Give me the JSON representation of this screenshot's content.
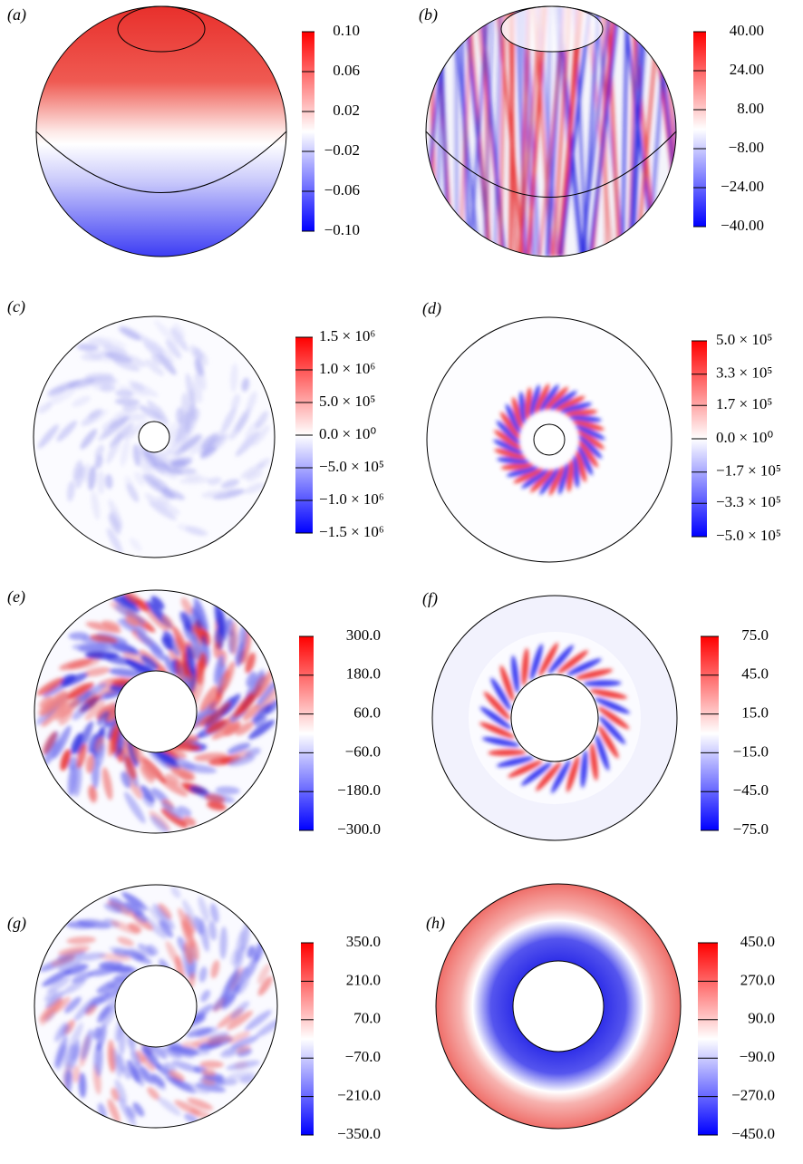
{
  "panels": [
    {
      "label": "(a)",
      "colorbar": {
        "lim": [
          -0.1,
          0.1
        ],
        "ticks": [
          {
            "value": 0.1,
            "label": "0.10"
          },
          0.06,
          0.02,
          {
            "value": -0.02,
            "label": "−0.02"
          },
          {
            "value": -0.06,
            "label": "−0.06"
          },
          {
            "value": -0.1,
            "label": "−0.10"
          }
        ]
      }
    },
    {
      "label": "(b)",
      "colorbar": {
        "lim": [
          -40,
          40
        ],
        "ticks": [
          {
            "value": 40,
            "label": "40.00"
          },
          {
            "value": 24,
            "label": "24.00"
          },
          {
            "value": 8,
            "label": "8.00"
          },
          {
            "value": -8,
            "label": "−8.00"
          },
          {
            "value": -24,
            "label": "−24.00"
          },
          {
            "value": -40,
            "label": "−40.00"
          }
        ]
      }
    },
    {
      "label": "(c)",
      "colorbar": {
        "lim": [
          -1500000,
          1500000
        ],
        "ticks": [
          {
            "value": 1500000,
            "label": "1.5 × 10⁶"
          },
          {
            "value": 1000000,
            "label": "1.0 × 10⁶"
          },
          {
            "value": 500000,
            "label": "5.0 × 10⁵"
          },
          {
            "value": 0,
            "label": "0.0 × 10⁰"
          },
          {
            "value": -500000,
            "label": "−5.0 × 10⁵"
          },
          {
            "value": -1000000,
            "label": "−1.0 × 10⁶"
          },
          {
            "value": -1500000,
            "label": "−1.5 × 10⁶"
          }
        ]
      }
    },
    {
      "label": "(d)",
      "colorbar": {
        "lim": [
          -500000,
          500000
        ],
        "ticks": [
          {
            "value": 500000,
            "label": "5.0 × 10⁵"
          },
          {
            "value": 330000,
            "label": "3.3 × 10⁵"
          },
          {
            "value": 170000,
            "label": "1.7 × 10⁵"
          },
          {
            "value": 0,
            "label": "0.0 × 10⁰"
          },
          {
            "value": -170000,
            "label": "−1.7 × 10⁵"
          },
          {
            "value": -330000,
            "label": "−3.3 × 10⁵"
          },
          {
            "value": -500000,
            "label": "−5.0 × 10⁵"
          }
        ]
      }
    },
    {
      "label": "(e)",
      "colorbar": {
        "lim": [
          -300,
          300
        ],
        "ticks": [
          {
            "value": 300,
            "label": "300.0"
          },
          {
            "value": 180,
            "label": "180.0"
          },
          {
            "value": 60,
            "label": "60.0"
          },
          {
            "value": -60,
            "label": "−60.0"
          },
          {
            "value": -180,
            "label": "−180.0"
          },
          {
            "value": -300,
            "label": "−300.0"
          }
        ]
      }
    },
    {
      "label": "(f)",
      "colorbar": {
        "lim": [
          -75,
          75
        ],
        "ticks": [
          {
            "value": 75,
            "label": "75.0"
          },
          {
            "value": 45,
            "label": "45.0"
          },
          {
            "value": 15,
            "label": "15.0"
          },
          {
            "value": -15,
            "label": "−15.0"
          },
          {
            "value": -45,
            "label": "−45.0"
          },
          {
            "value": -75,
            "label": "−75.0"
          }
        ]
      }
    },
    {
      "label": "(g)",
      "colorbar": {
        "lim": [
          -350,
          350
        ],
        "ticks": [
          {
            "value": 350,
            "label": "350.0"
          },
          {
            "value": 210,
            "label": "210.0"
          },
          {
            "value": 70,
            "label": "70.0"
          },
          {
            "value": -70,
            "label": "−70.0"
          },
          {
            "value": -210,
            "label": "−210.0"
          },
          {
            "value": -350,
            "label": "−350.0"
          }
        ]
      }
    },
    {
      "label": "(h)",
      "colorbar": {
        "lim": [
          -450,
          450
        ],
        "ticks": [
          {
            "value": 450,
            "label": "450.0"
          },
          {
            "value": 270,
            "label": "270.0"
          },
          {
            "value": 90,
            "label": "90.0"
          },
          {
            "value": -90,
            "label": "−90.0"
          },
          {
            "value": -270,
            "label": "−270.0"
          },
          {
            "value": -450,
            "label": "−450.0"
          }
        ]
      }
    }
  ]
}
